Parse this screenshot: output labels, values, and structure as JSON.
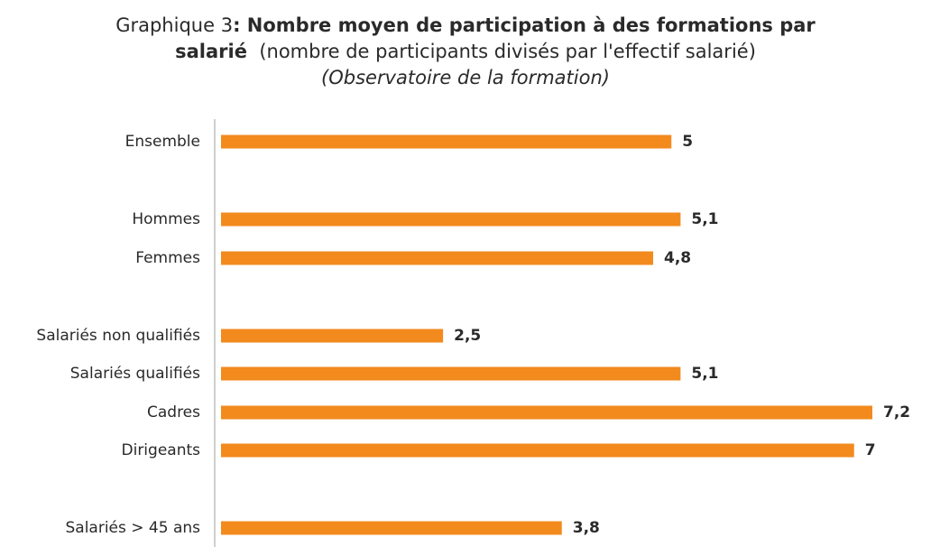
{
  "title": {
    "prefix": "Graphique 3",
    "separator": ": ",
    "bold_part1": "Nombre moyen de participation à des formations par",
    "bold_part2": "salarié",
    "normal_part2": "(nombre de participants divisés par l'effectif salarié)",
    "source": "(Observatoire de la formation)"
  },
  "colors": {
    "bar": "#F28A1E",
    "axis": "#bfbfbf"
  },
  "chart_data": {
    "type": "bar",
    "orientation": "horizontal",
    "categories": [
      "Ensemble",
      "Hommes",
      "Femmes",
      "Salariés non qualifiés",
      "Salariés qualifiés",
      "Cadres",
      "Dirigeants",
      "Salariés > 45 ans"
    ],
    "values": [
      5,
      5.1,
      4.8,
      2.5,
      5.1,
      7.2,
      7,
      3.8
    ],
    "value_labels": [
      "5",
      "5,1",
      "4,8",
      "2,5",
      "5,1",
      "7,2",
      "7",
      "3,8"
    ],
    "xlim": [
      0,
      7.2
    ],
    "grid": false,
    "legend": "none"
  }
}
